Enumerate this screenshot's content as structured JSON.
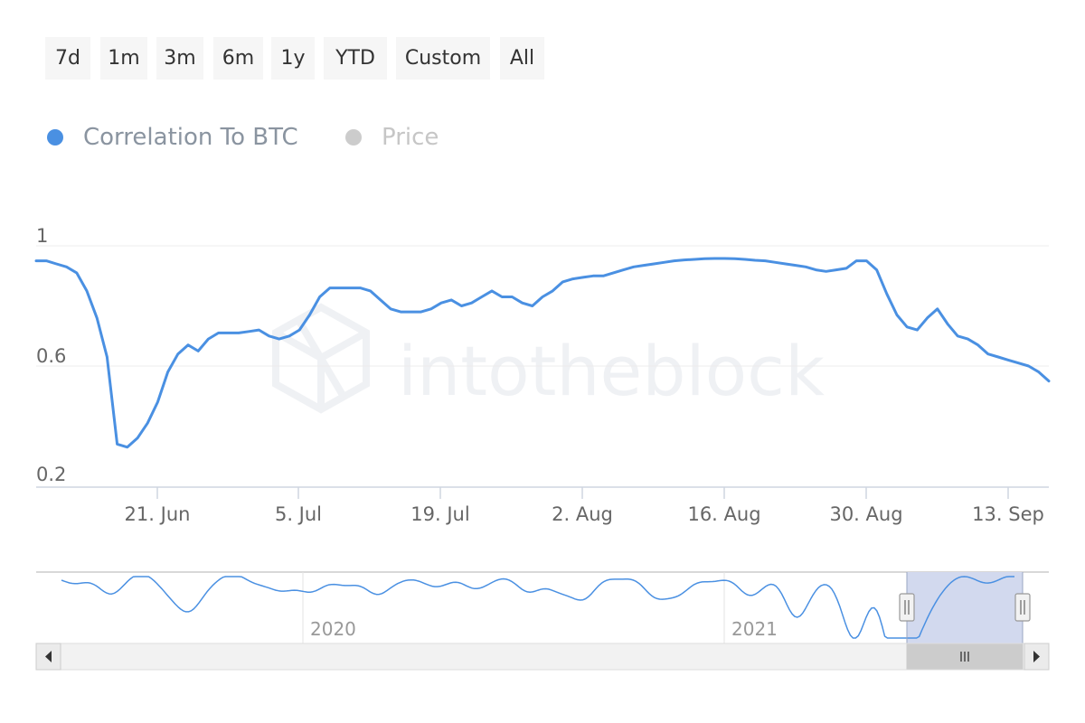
{
  "range_selector": {
    "buttons": [
      {
        "label": "7d"
      },
      {
        "label": "1m"
      },
      {
        "label": "3m"
      },
      {
        "label": "6m"
      },
      {
        "label": "1y"
      },
      {
        "label": "YTD"
      },
      {
        "label": "Custom"
      },
      {
        "label": "All"
      }
    ]
  },
  "legend": {
    "items": [
      {
        "label": "Correlation To BTC",
        "color": "#4a90e2",
        "label_color": "#8a94a0"
      },
      {
        "label": "Price",
        "color": "#cccccc",
        "label_color": "#c6c6c6"
      }
    ]
  },
  "watermark": {
    "text": "intotheblock"
  },
  "navigator": {
    "year_labels": [
      "2020",
      "2021"
    ]
  },
  "chart_data": {
    "type": "line",
    "title": "",
    "xlabel": "",
    "ylabel": "",
    "x_tick_labels": [
      "21. Jun",
      "5. Jul",
      "19. Jul",
      "2. Aug",
      "16. Aug",
      "30. Aug",
      "13. Sep"
    ],
    "y_tick_labels": [
      "1",
      "0.6",
      "0.2"
    ],
    "ylim": [
      0.16,
      1.0
    ],
    "x_range_days": [
      "2021-06-09",
      "2021-09-17"
    ],
    "series": [
      {
        "name": "Correlation To BTC",
        "color": "#4a90e2",
        "x": [
          0,
          1,
          2,
          3,
          4,
          5,
          6,
          7,
          8,
          9,
          10,
          11,
          12,
          13,
          14,
          15,
          16,
          17,
          18,
          19,
          20,
          21,
          22,
          23,
          24,
          25,
          26,
          27,
          28,
          29,
          30,
          31,
          32,
          33,
          34,
          35,
          36,
          37,
          38,
          39,
          40,
          41,
          42,
          43,
          44,
          45,
          46,
          47,
          48,
          49,
          50,
          51,
          52,
          53,
          54,
          55,
          56,
          57,
          58,
          59,
          60,
          61,
          62,
          63,
          64,
          65,
          66,
          67,
          68,
          69,
          70,
          71,
          72,
          73,
          74,
          75,
          76,
          77,
          78,
          79,
          80,
          81,
          82,
          83,
          84,
          85,
          86,
          87,
          88,
          89,
          90,
          91,
          92,
          93,
          94,
          95,
          96,
          97,
          98,
          99,
          100
        ],
        "y": [
          0.95,
          0.95,
          0.94,
          0.93,
          0.91,
          0.85,
          0.76,
          0.63,
          0.34,
          0.33,
          0.36,
          0.41,
          0.48,
          0.58,
          0.64,
          0.67,
          0.65,
          0.69,
          0.71,
          0.71,
          0.71,
          0.715,
          0.72,
          0.7,
          0.69,
          0.7,
          0.72,
          0.77,
          0.83,
          0.86,
          0.86,
          0.86,
          0.86,
          0.85,
          0.82,
          0.79,
          0.78,
          0.78,
          0.78,
          0.79,
          0.81,
          0.82,
          0.8,
          0.81,
          0.83,
          0.85,
          0.83,
          0.83,
          0.81,
          0.8,
          0.83,
          0.85,
          0.88,
          0.89,
          0.895,
          0.9,
          0.9,
          0.91,
          0.92,
          0.93,
          0.935,
          0.94,
          0.945,
          0.95,
          0.953,
          0.955,
          0.957,
          0.958,
          0.958,
          0.957,
          0.955,
          0.952,
          0.95,
          0.945,
          0.94,
          0.935,
          0.93,
          0.92,
          0.915,
          0.92,
          0.925,
          0.95,
          0.95,
          0.92,
          0.84,
          0.77,
          0.73,
          0.72,
          0.76,
          0.79,
          0.74,
          0.7,
          0.69,
          0.67,
          0.64,
          0.63,
          0.62,
          0.61,
          0.6,
          0.58,
          0.55
        ]
      },
      {
        "name": "Price",
        "color": "#cccccc",
        "visible": false,
        "x": [],
        "y": []
      }
    ],
    "grid": true,
    "legend_position": "top-left"
  }
}
